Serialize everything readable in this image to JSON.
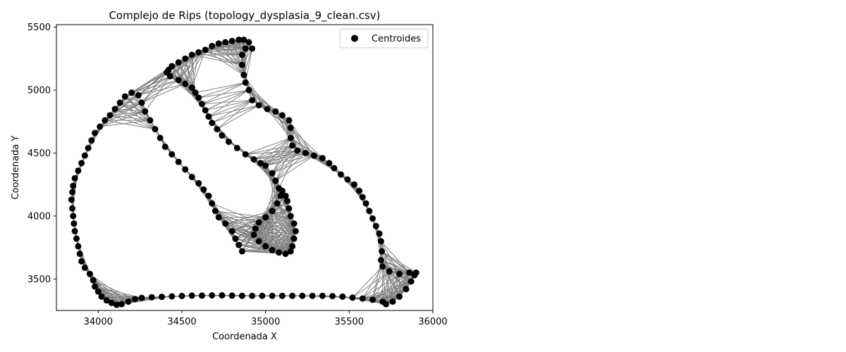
{
  "chart_data": {
    "type": "scatter",
    "title": "Complejo de Rips (topology_dysplasia_9_clean.csv)",
    "xlabel": "Coordenada X",
    "ylabel": "Coordenada Y",
    "xlim": [
      33750,
      36000
    ],
    "ylim": [
      3250,
      5520
    ],
    "xticks": [
      34000,
      34500,
      35000,
      35500,
      36000
    ],
    "yticks": [
      3500,
      4000,
      4500,
      5000,
      5500
    ],
    "grid": false,
    "legend": {
      "position": "top-right",
      "entries": [
        "Centroides"
      ]
    },
    "colors": {
      "points": "#000000",
      "edges": "#808080"
    },
    "series": [
      {
        "name": "Centroides",
        "kind": "points",
        "points": [
          [
            33840,
            4130
          ],
          [
            33845,
            4060
          ],
          [
            33850,
            4000
          ],
          [
            33855,
            3940
          ],
          [
            33860,
            3880
          ],
          [
            33870,
            3820
          ],
          [
            33880,
            3760
          ],
          [
            33890,
            3700
          ],
          [
            33900,
            3640
          ],
          [
            33920,
            3590
          ],
          [
            33950,
            3540
          ],
          [
            33970,
            3490
          ],
          [
            33980,
            3440
          ],
          [
            34000,
            3400
          ],
          [
            34020,
            3360
          ],
          [
            34050,
            3330
          ],
          [
            34080,
            3310
          ],
          [
            34110,
            3295
          ],
          [
            34140,
            3300
          ],
          [
            34180,
            3320
          ],
          [
            34220,
            3340
          ],
          [
            34260,
            3350
          ],
          [
            34320,
            3355
          ],
          [
            34380,
            3358
          ],
          [
            34440,
            3362
          ],
          [
            34500,
            3365
          ],
          [
            34560,
            3368
          ],
          [
            34620,
            3368
          ],
          [
            34680,
            3370
          ],
          [
            34740,
            3370
          ],
          [
            34800,
            3368
          ],
          [
            34860,
            3366
          ],
          [
            34920,
            3366
          ],
          [
            34980,
            3366
          ],
          [
            35040,
            3366
          ],
          [
            35100,
            3366
          ],
          [
            35160,
            3366
          ],
          [
            35220,
            3366
          ],
          [
            35280,
            3366
          ],
          [
            35340,
            3366
          ],
          [
            35400,
            3364
          ],
          [
            35460,
            3360
          ],
          [
            35520,
            3352
          ],
          [
            35580,
            3345
          ],
          [
            35640,
            3335
          ],
          [
            35700,
            3320
          ],
          [
            35720,
            3300
          ],
          [
            35760,
            3320
          ],
          [
            35800,
            3360
          ],
          [
            35840,
            3420
          ],
          [
            35870,
            3480
          ],
          [
            35890,
            3530
          ],
          [
            35900,
            3550
          ],
          [
            35860,
            3550
          ],
          [
            35800,
            3540
          ],
          [
            35740,
            3560
          ],
          [
            35700,
            3600
          ],
          [
            35690,
            3650
          ],
          [
            35695,
            3720
          ],
          [
            35690,
            3800
          ],
          [
            35680,
            3860
          ],
          [
            35660,
            3920
          ],
          [
            35640,
            3980
          ],
          [
            35620,
            4040
          ],
          [
            35600,
            4100
          ],
          [
            35580,
            4150
          ],
          [
            35560,
            4200
          ],
          [
            35530,
            4250
          ],
          [
            35490,
            4290
          ],
          [
            35450,
            4330
          ],
          [
            35410,
            4380
          ],
          [
            35380,
            4420
          ],
          [
            35340,
            4460
          ],
          [
            35290,
            4480
          ],
          [
            35240,
            4500
          ],
          [
            35190,
            4520
          ],
          [
            35160,
            4560
          ],
          [
            35150,
            4620
          ],
          [
            35150,
            4700
          ],
          [
            35140,
            4760
          ],
          [
            35100,
            4800
          ],
          [
            35060,
            4830
          ],
          [
            35010,
            4850
          ],
          [
            34960,
            4880
          ],
          [
            34920,
            4920
          ],
          [
            34900,
            5000
          ],
          [
            34880,
            5060
          ],
          [
            34870,
            5120
          ],
          [
            34860,
            5200
          ],
          [
            34860,
            5280
          ],
          [
            34880,
            5330
          ],
          [
            34920,
            5330
          ],
          [
            34900,
            5380
          ],
          [
            34870,
            5400
          ],
          [
            34840,
            5400
          ],
          [
            34800,
            5390
          ],
          [
            34760,
            5380
          ],
          [
            34720,
            5370
          ],
          [
            34680,
            5350
          ],
          [
            34640,
            5320
          ],
          [
            34600,
            5300
          ],
          [
            34560,
            5280
          ],
          [
            34520,
            5250
          ],
          [
            34480,
            5220
          ],
          [
            34440,
            5190
          ],
          [
            34420,
            5160
          ],
          [
            34410,
            5140
          ],
          [
            34430,
            5110
          ],
          [
            34480,
            5080
          ],
          [
            34520,
            5050
          ],
          [
            34560,
            5020
          ],
          [
            34580,
            4980
          ],
          [
            34600,
            4940
          ],
          [
            34620,
            4890
          ],
          [
            34640,
            4840
          ],
          [
            34660,
            4790
          ],
          [
            34680,
            4740
          ],
          [
            34710,
            4690
          ],
          [
            34740,
            4640
          ],
          [
            34780,
            4590
          ],
          [
            34830,
            4540
          ],
          [
            34880,
            4490
          ],
          [
            34930,
            4450
          ],
          [
            34970,
            4420
          ],
          [
            35000,
            4400
          ],
          [
            35040,
            4340
          ],
          [
            35060,
            4280
          ],
          [
            35080,
            4220
          ],
          [
            35090,
            4160
          ],
          [
            35070,
            4100
          ],
          [
            35040,
            4040
          ],
          [
            35000,
            3990
          ],
          [
            34960,
            3950
          ],
          [
            34940,
            3900
          ],
          [
            34930,
            3850
          ],
          [
            34960,
            3800
          ],
          [
            35000,
            3760
          ],
          [
            35040,
            3730
          ],
          [
            35080,
            3710
          ],
          [
            35120,
            3700
          ],
          [
            35150,
            3720
          ],
          [
            35160,
            3760
          ],
          [
            35170,
            3820
          ],
          [
            35180,
            3880
          ],
          [
            35170,
            3940
          ],
          [
            35150,
            4000
          ],
          [
            35140,
            4060
          ],
          [
            35130,
            4120
          ],
          [
            35120,
            4160
          ],
          [
            35100,
            4200
          ],
          [
            34860,
            3720
          ],
          [
            34840,
            3770
          ],
          [
            34820,
            3820
          ],
          [
            34800,
            3880
          ],
          [
            34760,
            3940
          ],
          [
            34720,
            3990
          ],
          [
            34700,
            4040
          ],
          [
            34680,
            4100
          ],
          [
            34660,
            4160
          ],
          [
            34630,
            4210
          ],
          [
            34600,
            4260
          ],
          [
            34560,
            4310
          ],
          [
            34520,
            4370
          ],
          [
            34480,
            4430
          ],
          [
            34440,
            4490
          ],
          [
            34400,
            4550
          ],
          [
            34370,
            4620
          ],
          [
            34340,
            4690
          ],
          [
            34310,
            4760
          ],
          [
            34280,
            4830
          ],
          [
            34260,
            4900
          ],
          [
            34240,
            4960
          ],
          [
            34200,
            4980
          ],
          [
            34160,
            4950
          ],
          [
            34130,
            4900
          ],
          [
            34100,
            4850
          ],
          [
            34070,
            4800
          ],
          [
            34040,
            4760
          ],
          [
            34010,
            4710
          ],
          [
            33980,
            4660
          ],
          [
            33960,
            4600
          ],
          [
            33940,
            4540
          ],
          [
            33920,
            4480
          ],
          [
            33900,
            4420
          ],
          [
            33880,
            4360
          ],
          [
            33860,
            4300
          ],
          [
            33850,
            4240
          ],
          [
            33845,
            4190
          ]
        ]
      }
    ]
  }
}
